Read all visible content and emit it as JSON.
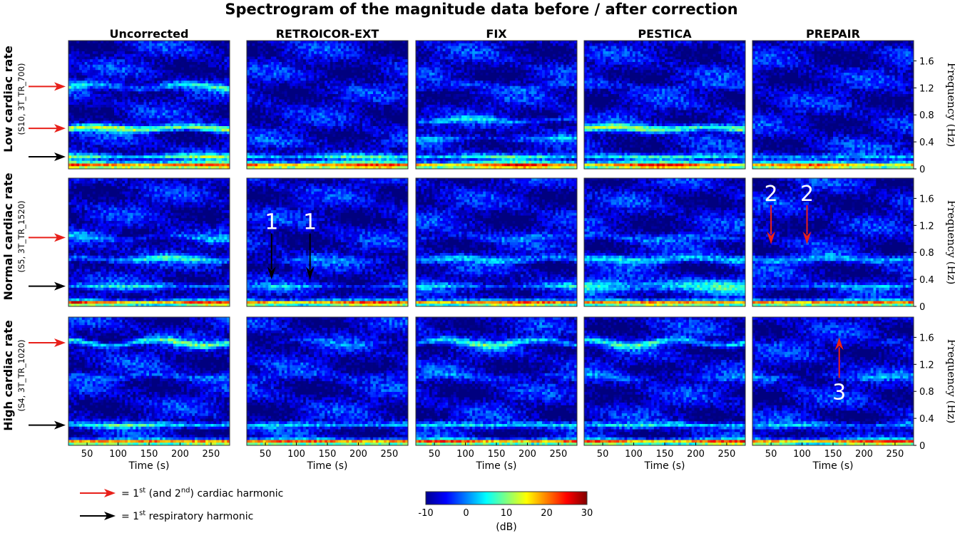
{
  "chart_data": {
    "type": "heatmap",
    "title": "Spectrogram of the magnitude data before / after correction",
    "columns": [
      "Uncorrected",
      "RETROICOR-EXT",
      "FIX",
      "PESTICA",
      "PREPAIR"
    ],
    "rows": [
      {
        "label": "Low cardiac rate",
        "sublabel": "(S10, 3T_TR_700)",
        "cardiac_arrows_hz": [
          1.22,
          0.6
        ],
        "respiratory_arrows_hz": [
          0.18
        ]
      },
      {
        "label": "Normal cardiac rate",
        "sublabel": "(S5, 3T_TR_1520)",
        "cardiac_arrows_hz": [
          1.02
        ],
        "respiratory_arrows_hz": [
          0.3
        ]
      },
      {
        "label": "High cardiac rate",
        "sublabel": "(S4, 3T_TR_1020)",
        "cardiac_arrows_hz": [
          1.52
        ],
        "respiratory_arrows_hz": [
          0.3
        ]
      }
    ],
    "xlabel": "Time (s)",
    "xticks": [
      50,
      100,
      150,
      200,
      250
    ],
    "xlim": [
      20,
      280
    ],
    "ylabel": "Frequency (Hz)",
    "yticks": [
      "0",
      "0.4",
      "0.8",
      "1.2",
      "1.6"
    ],
    "ytick_values": [
      0,
      0.4,
      0.8,
      1.2,
      1.6
    ],
    "ylim": [
      0,
      1.9
    ],
    "bands": {
      "low": [
        [
          {
            "f": 0.05,
            "a": 28,
            "w": 0.05
          },
          {
            "f": 0.18,
            "a": 14,
            "w": 0.04
          },
          {
            "f": 0.6,
            "a": 18,
            "w": 0.05
          },
          {
            "f": 1.22,
            "a": 10,
            "w": 0.05
          }
        ],
        [
          {
            "f": 0.05,
            "a": 28,
            "w": 0.05
          },
          {
            "f": 0.18,
            "a": 12,
            "w": 0.04
          },
          {
            "f": 0.4,
            "a": 2,
            "w": 0.05
          }
        ],
        [
          {
            "f": 0.05,
            "a": 28,
            "w": 0.05
          },
          {
            "f": 0.18,
            "a": 12,
            "w": 0.04
          },
          {
            "f": 0.45,
            "a": 6,
            "w": 0.04
          },
          {
            "f": 0.72,
            "a": 8,
            "w": 0.04
          },
          {
            "f": 1.22,
            "a": 4,
            "w": 0.05
          }
        ],
        [
          {
            "f": 0.05,
            "a": 28,
            "w": 0.05
          },
          {
            "f": 0.18,
            "a": 12,
            "w": 0.04
          },
          {
            "f": 0.6,
            "a": 17,
            "w": 0.05
          },
          {
            "f": 1.22,
            "a": 3,
            "w": 0.05
          }
        ],
        [
          {
            "f": 0.05,
            "a": 26,
            "w": 0.05
          },
          {
            "f": 0.18,
            "a": 8,
            "w": 0.04
          },
          {
            "f": 0.35,
            "a": 1,
            "w": 0.05
          }
        ]
      ],
      "normal": [
        [
          {
            "f": 0.05,
            "a": 28,
            "w": 0.04
          },
          {
            "f": 0.3,
            "a": 9,
            "w": 0.04
          },
          {
            "f": 0.7,
            "a": 10,
            "w": 0.05
          },
          {
            "f": 1.02,
            "a": 6,
            "w": 0.05
          }
        ],
        [
          {
            "f": 0.05,
            "a": 28,
            "w": 0.04
          },
          {
            "f": 0.3,
            "a": 6,
            "w": 0.04
          },
          {
            "f": 0.68,
            "a": 4,
            "w": 0.05
          }
        ],
        [
          {
            "f": 0.05,
            "a": 28,
            "w": 0.04
          },
          {
            "f": 0.3,
            "a": 8,
            "w": 0.04
          },
          {
            "f": 0.7,
            "a": 9,
            "w": 0.05
          },
          {
            "f": 1.02,
            "a": 4,
            "w": 0.05
          }
        ],
        [
          {
            "f": 0.05,
            "a": 28,
            "w": 0.04
          },
          {
            "f": 0.3,
            "a": 11,
            "w": 0.1
          },
          {
            "f": 0.7,
            "a": 10,
            "w": 0.06
          },
          {
            "f": 1.02,
            "a": 5,
            "w": 0.05
          }
        ],
        [
          {
            "f": 0.05,
            "a": 28,
            "w": 0.04
          },
          {
            "f": 0.3,
            "a": 7,
            "w": 0.04
          },
          {
            "f": 0.7,
            "a": 9,
            "w": 0.05
          }
        ]
      ],
      "high": [
        [
          {
            "f": 0.05,
            "a": 28,
            "w": 0.04
          },
          {
            "f": 0.3,
            "a": 12,
            "w": 0.04
          },
          {
            "f": 1.02,
            "a": 5,
            "w": 0.05
          },
          {
            "f": 1.52,
            "a": 13,
            "w": 0.05
          }
        ],
        [
          {
            "f": 0.05,
            "a": 28,
            "w": 0.04
          },
          {
            "f": 0.3,
            "a": 9,
            "w": 0.04
          },
          {
            "f": 1.02,
            "a": 3,
            "w": 0.05
          },
          {
            "f": 1.52,
            "a": 3,
            "w": 0.05
          }
        ],
        [
          {
            "f": 0.05,
            "a": 28,
            "w": 0.04
          },
          {
            "f": 0.3,
            "a": 11,
            "w": 0.04
          },
          {
            "f": 1.02,
            "a": 4,
            "w": 0.05
          },
          {
            "f": 1.52,
            "a": 12,
            "w": 0.05
          }
        ],
        [
          {
            "f": 0.05,
            "a": 28,
            "w": 0.04
          },
          {
            "f": 0.3,
            "a": 11,
            "w": 0.04
          },
          {
            "f": 1.02,
            "a": 4,
            "w": 0.05
          },
          {
            "f": 1.52,
            "a": 12,
            "w": 0.05
          }
        ],
        [
          {
            "f": 0.05,
            "a": 28,
            "w": 0.04
          },
          {
            "f": 0.3,
            "a": 8,
            "w": 0.04
          },
          {
            "f": 1.02,
            "a": 5,
            "w": 0.05
          },
          {
            "f": 1.52,
            "a": 2,
            "w": 0.05
          }
        ]
      ]
    },
    "annotations": [
      {
        "row": 1,
        "col": 1,
        "text": "1",
        "t": 60,
        "f_start": 1.08,
        "f_end": 0.4,
        "color": "#000000"
      },
      {
        "row": 1,
        "col": 1,
        "text": "1",
        "t": 122,
        "f_start": 1.08,
        "f_end": 0.4,
        "color": "#000000"
      },
      {
        "row": 1,
        "col": 4,
        "text": "2",
        "t": 50,
        "f_start": 1.5,
        "f_end": 0.92,
        "color": "#e8201a"
      },
      {
        "row": 1,
        "col": 4,
        "text": "2",
        "t": 108,
        "f_start": 1.5,
        "f_end": 0.92,
        "color": "#e8201a"
      },
      {
        "row": 2,
        "col": 4,
        "text": "3",
        "t": 160,
        "f_start": 1.0,
        "f_end": 1.6,
        "color": "#e8201a"
      }
    ],
    "colorbar": {
      "label": "(dB)",
      "min": -10,
      "max": 30,
      "ticks": [
        "-10",
        "0",
        "10",
        "20",
        "30"
      ],
      "tick_values": [
        -10,
        0,
        10,
        20,
        30
      ],
      "colormap": "jet"
    },
    "legend": [
      {
        "color": "#e8201a",
        "text_before": "= 1",
        "sup1": "st",
        "text_mid": " (and 2",
        "sup2": "nd",
        "text_after": ") cardiac harmonic"
      },
      {
        "color": "#000000",
        "text_before": "= 1",
        "sup1": "st",
        "text_mid": " respiratory harmonic",
        "sup2": "",
        "text_after": ""
      }
    ]
  },
  "colors": {
    "cardiac_arrow": "#e8201a",
    "respiratory_arrow": "#000000"
  }
}
